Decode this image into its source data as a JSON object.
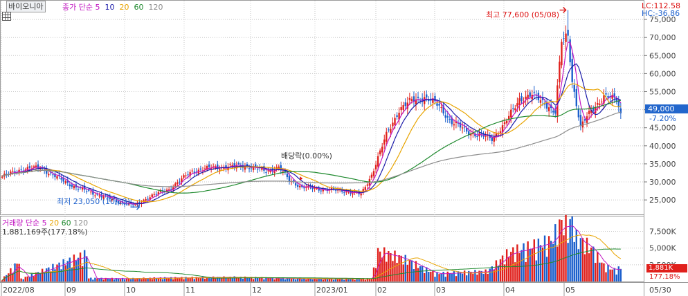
{
  "header": {
    "stock_name": "바이오니아",
    "price_legend_prefix": "종가 단순",
    "volume_legend_prefix": "거래량 단순",
    "ma_periods": [
      "5",
      "10",
      "20",
      "60",
      "120"
    ],
    "volume_summary": "1,881,169주(177.18%)"
  },
  "indicators": {
    "lc": "LC:112.58",
    "hc": "HC:-36.86"
  },
  "annotations": {
    "high": "최고 77,600 (05/08)",
    "low": "최저 23,050 (10/13)",
    "dividend": "배당락(0.00%)"
  },
  "last_price": {
    "value": "49,000",
    "change": "-7.20%"
  },
  "last_volume": {
    "value": "1,881K",
    "ratio": "177.18%"
  },
  "colors": {
    "up": "#e0201c",
    "down": "#1b5fcc",
    "ma5": "#c217c2",
    "ma10": "#1a1aa8",
    "ma20": "#e8a400",
    "ma60": "#1f8a2e",
    "ma120": "#8c8c8c",
    "tag": "#2266cc"
  },
  "chart_data": [
    {
      "type": "candlestick",
      "title": "바이오니아",
      "y_ticks": [
        "75,000",
        "70,000",
        "65,000",
        "60,000",
        "55,000",
        "50,000",
        "45,000",
        "40,000",
        "35,000",
        "30,000",
        "25,000"
      ],
      "y_tick_values": [
        75000,
        70000,
        65000,
        60000,
        55000,
        50000,
        45000,
        40000,
        35000,
        30000,
        25000
      ],
      "ylim": [
        21000,
        80000
      ],
      "x_ticks": [
        "2022/08",
        "09",
        "10",
        "11",
        "12",
        "2023/01",
        "02",
        "03",
        "04",
        "05",
        "05/30"
      ],
      "series": [
        {
          "name": "종가",
          "anchors": [
            [
              0,
              31500
            ],
            [
              9,
              33500
            ],
            [
              18,
              34000
            ],
            [
              25,
              31500
            ],
            [
              35,
              28500
            ],
            [
              45,
              26500
            ],
            [
              55,
              24500
            ],
            [
              63,
              23500
            ],
            [
              70,
              26000
            ],
            [
              79,
              28000
            ],
            [
              90,
              33000
            ],
            [
              100,
              34000
            ],
            [
              115,
              34500
            ],
            [
              125,
              33000
            ],
            [
              131,
              34000
            ],
            [
              136,
              30500
            ],
            [
              142,
              28500
            ],
            [
              150,
              28000
            ],
            [
              162,
              27500
            ],
            [
              170,
              26500
            ],
            [
              175,
              32000
            ],
            [
              182,
              43000
            ],
            [
              188,
              50000
            ],
            [
              194,
              52500
            ],
            [
              200,
              53500
            ],
            [
              207,
              51000
            ],
            [
              213,
              46500
            ],
            [
              222,
              43500
            ],
            [
              232,
              42000
            ],
            [
              238,
              46000
            ],
            [
              245,
              53000
            ],
            [
              251,
              54000
            ],
            [
              257,
              52000
            ],
            [
              262,
              49000
            ],
            [
              265,
              69000
            ],
            [
              268,
              71000
            ],
            [
              270,
              58000
            ],
            [
              274,
              45000
            ],
            [
              279,
              50000
            ],
            [
              285,
              53500
            ],
            [
              291,
              53000
            ],
            [
              293,
              49000
            ]
          ]
        },
        {
          "name": "5",
          "values": "ma"
        },
        {
          "name": "10",
          "values": "ma"
        },
        {
          "name": "20",
          "values": "ma"
        },
        {
          "name": "60",
          "values": "ma"
        },
        {
          "name": "120",
          "values": "ma"
        }
      ],
      "high": 77600,
      "high_date": "05/08",
      "low": 23050,
      "low_date": "10/13"
    },
    {
      "type": "bar",
      "title": "거래량",
      "y_ticks": [
        "7,500K",
        "5,000K",
        "2,500K"
      ],
      "y_tick_values": [
        7500,
        5000,
        2500
      ],
      "ylim": [
        0,
        8800
      ],
      "volume_anchors": [
        [
          0,
          300
        ],
        [
          8,
          2800
        ],
        [
          9,
          350
        ],
        [
          40,
          3800
        ],
        [
          41,
          450
        ],
        [
          60,
          400
        ],
        [
          75,
          500
        ],
        [
          110,
          600
        ],
        [
          150,
          350
        ],
        [
          175,
          400
        ],
        [
          178,
          4100
        ],
        [
          182,
          3900
        ],
        [
          190,
          3200
        ],
        [
          205,
          1100
        ],
        [
          230,
          1400
        ],
        [
          240,
          4000
        ],
        [
          260,
          5600
        ],
        [
          265,
          8200
        ],
        [
          268,
          7400
        ],
        [
          270,
          8400
        ],
        [
          272,
          6000
        ],
        [
          276,
          5300
        ],
        [
          280,
          4300
        ],
        [
          285,
          2200
        ],
        [
          290,
          1600
        ],
        [
          293,
          1881
        ]
      ]
    }
  ]
}
